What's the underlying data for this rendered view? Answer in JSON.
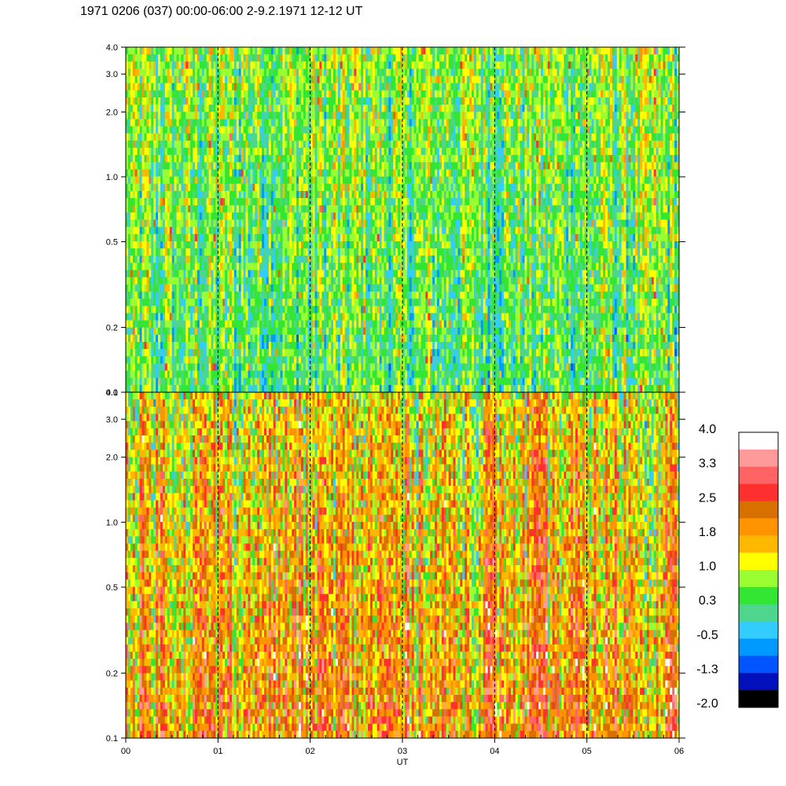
{
  "title": "1971 0206 (037) 00:00-06:00 2-9.2.1971  12-12 UT",
  "chart_data": {
    "type": "heatmap",
    "xlabel": "UT",
    "x_ticks": [
      "00",
      "01",
      "02",
      "03",
      "04",
      "05",
      "06"
    ],
    "x_range": [
      0,
      6
    ],
    "y_scale": "log",
    "y_range": [
      0.1,
      4.0
    ],
    "panels": [
      {
        "name": "upper",
        "y_ticks": [
          {
            "value": 0.1,
            "label": "0.1"
          },
          {
            "value": 0.2,
            "label": "0.2"
          },
          {
            "value": 0.5,
            "label": "0.5"
          },
          {
            "value": 1.0,
            "label": "1.0"
          },
          {
            "value": 2.0,
            "label": "2.0"
          },
          {
            "value": 3.0,
            "label": "3.0"
          },
          {
            "value": 4.0,
            "label": "4.0"
          }
        ],
        "dominant_range": [
          -0.5,
          1.0
        ]
      },
      {
        "name": "lower",
        "y_ticks": [
          {
            "value": 0.1,
            "label": "0.1"
          },
          {
            "value": 0.2,
            "label": "0.2"
          },
          {
            "value": 0.5,
            "label": "0.5"
          },
          {
            "value": 1.0,
            "label": "1.0"
          },
          {
            "value": 2.0,
            "label": "2.0"
          },
          {
            "value": 3.0,
            "label": "3.0"
          },
          {
            "value": 4.0,
            "label": "4.0"
          }
        ],
        "dominant_range": [
          0.3,
          2.5
        ]
      }
    ],
    "dashed_gridlines_at_hours": [
      1,
      2,
      3,
      4,
      5
    ],
    "colorbar": {
      "labels": [
        "4.0",
        "3.3",
        "2.5",
        "1.8",
        "1.0",
        "0.3",
        "-0.5",
        "-1.3",
        "-2.0"
      ],
      "colors": [
        "#ffffff",
        "#ff9a9a",
        "#ff6464",
        "#ff3030",
        "#d87000",
        "#ff9400",
        "#ffb800",
        "#ffff00",
        "#99ff33",
        "#33e633",
        "#4dd68c",
        "#33ccff",
        "#0099ff",
        "#0055ff",
        "#0011bb",
        "#000000"
      ]
    }
  }
}
